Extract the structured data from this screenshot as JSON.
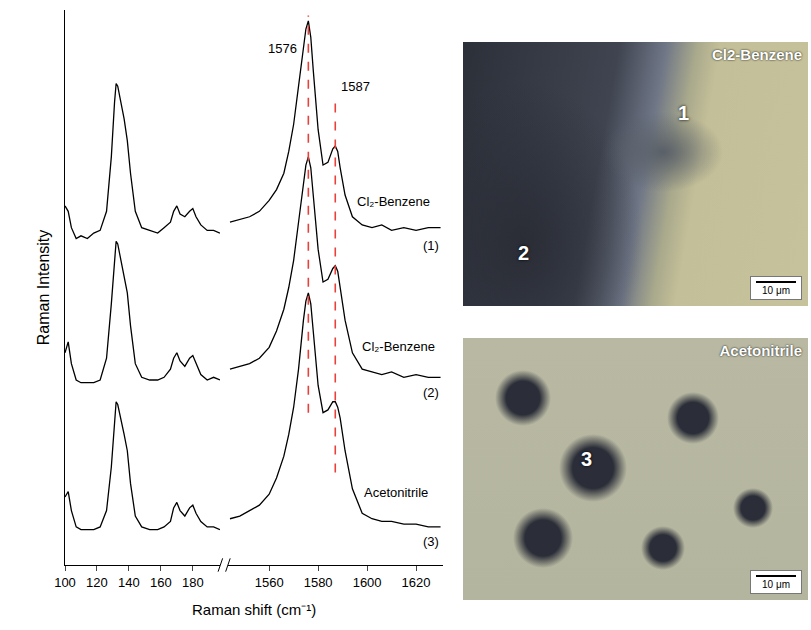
{
  "chart_data": {
    "type": "line",
    "x_label": "Raman shift (cm⁻¹)",
    "y_label": "Raman Intensity",
    "tick_labels": "x",
    "ylim": [
      0,
      102
    ],
    "panels": [
      {
        "xlim": [
          100,
          197
        ],
        "xticks": [
          100,
          120,
          140,
          160,
          180
        ]
      },
      {
        "xlim": [
          1543,
          1631
        ],
        "xticks": [
          1560,
          1580,
          1600,
          1620
        ]
      }
    ],
    "series": [
      {
        "color": "#000000",
        "x": [
          100,
          102,
          104,
          107,
          110,
          114,
          118,
          122,
          126,
          129,
          131,
          132,
          133,
          135,
          137,
          139,
          141,
          144,
          148,
          153,
          158,
          162,
          166,
          168,
          170,
          172,
          175,
          178,
          180,
          182,
          185,
          189,
          193,
          197,
          1544,
          1548,
          1552,
          1556,
          1560,
          1563,
          1566,
          1568,
          1570,
          1572,
          1574,
          1575,
          1576,
          1577,
          1578,
          1580,
          1582,
          1584,
          1586,
          1587,
          1588,
          1589,
          1591,
          1594,
          1598,
          1602,
          1606,
          1610,
          1615,
          1620,
          1625,
          1630
        ],
        "values": [
          66,
          65,
          62,
          60,
          60.5,
          60,
          61,
          61.5,
          65,
          75,
          85,
          88.5,
          88,
          85,
          82,
          78,
          72,
          65,
          62,
          61.5,
          61,
          62,
          63,
          65,
          66,
          64.5,
          64,
          65,
          65.5,
          64,
          62.5,
          61.5,
          61.5,
          61,
          63,
          63.5,
          64,
          65,
          67,
          69,
          72,
          76,
          81,
          88,
          95,
          98.5,
          100,
          97,
          91,
          80,
          73.5,
          74,
          76.5,
          77,
          76,
          73,
          68,
          64,
          62.5,
          62,
          62.5,
          61.5,
          62,
          61.5,
          62,
          62
        ]
      },
      {
        "color": "#000000",
        "x": [
          100,
          102,
          104,
          107,
          110,
          114,
          118,
          122,
          126,
          129,
          131,
          132,
          133,
          135,
          137,
          139,
          141,
          144,
          148,
          153,
          158,
          162,
          166,
          168,
          170,
          172,
          175,
          178,
          180,
          182,
          185,
          189,
          193,
          197,
          1544,
          1548,
          1552,
          1556,
          1560,
          1563,
          1566,
          1568,
          1570,
          1572,
          1574,
          1575,
          1576,
          1577,
          1578,
          1580,
          1582,
          1584,
          1586,
          1587,
          1588,
          1589,
          1591,
          1594,
          1598,
          1602,
          1606,
          1610,
          1615,
          1620,
          1625,
          1630
        ],
        "values": [
          39,
          41,
          37,
          34,
          33.5,
          33.5,
          33.5,
          34,
          38,
          48,
          57,
          59.5,
          59,
          56,
          53,
          50,
          44,
          37,
          34.5,
          34,
          34,
          34.5,
          36,
          38,
          39,
          37.5,
          36.5,
          38,
          38.5,
          37,
          35,
          34,
          34.5,
          34,
          36,
          36.5,
          37,
          38,
          40,
          43,
          47,
          51,
          56,
          63,
          70,
          73.5,
          75,
          73,
          68,
          58,
          52,
          52.5,
          54.5,
          55,
          54,
          51,
          45,
          39,
          36,
          35.5,
          35,
          35.5,
          34.5,
          35,
          34.5,
          34.5
        ]
      },
      {
        "color": "#000000",
        "x": [
          100,
          102,
          104,
          107,
          110,
          114,
          118,
          122,
          126,
          129,
          131,
          132,
          133,
          135,
          137,
          139,
          141,
          144,
          148,
          153,
          158,
          162,
          166,
          168,
          170,
          172,
          175,
          178,
          180,
          182,
          185,
          189,
          193,
          197,
          1544,
          1548,
          1552,
          1556,
          1560,
          1563,
          1566,
          1568,
          1570,
          1572,
          1574,
          1575,
          1576,
          1577,
          1578,
          1580,
          1582,
          1584,
          1586,
          1587,
          1588,
          1589,
          1591,
          1594,
          1598,
          1602,
          1606,
          1610,
          1615,
          1620,
          1625,
          1630
        ],
        "values": [
          12.5,
          13.5,
          10,
          7,
          6.5,
          6.5,
          6.5,
          7,
          10,
          18,
          27,
          30,
          29.5,
          27,
          24,
          21,
          15,
          9,
          7,
          6.5,
          6.5,
          7,
          8,
          10.5,
          11.5,
          10,
          9,
          10.5,
          11,
          9.5,
          8,
          7,
          7,
          6.5,
          8.5,
          9,
          10,
          11,
          13,
          16,
          20,
          24,
          29,
          36,
          45,
          48.5,
          50,
          48,
          43,
          33,
          28,
          28.5,
          30,
          30,
          29,
          27,
          21,
          14,
          9.5,
          8.5,
          8,
          8,
          7.5,
          7.5,
          7,
          7
        ]
      }
    ],
    "reference_lines": [
      {
        "x": 1576,
        "y": [
          28,
          101
        ],
        "label": "1576",
        "label_y": 95,
        "color": "#e8403a",
        "line_style": "dash"
      },
      {
        "x": 1587,
        "y": [
          17,
          86
        ],
        "label": "1587",
        "label_y": 88,
        "color": "#e8403a",
        "line_style": "dash"
      }
    ],
    "annotations": [
      {
        "text": "Cl₂-Benzene",
        "x": 1595,
        "y": 65
      },
      {
        "text": "(1)",
        "x": 1630,
        "y": 60.5
      },
      {
        "text": "Cl₂-Benzene",
        "x": 1597,
        "y": 38.5
      },
      {
        "text": "(2)",
        "x": 1630,
        "y": 33.5
      },
      {
        "text": "Acetonitrile",
        "x": 1598,
        "y": 11.5
      },
      {
        "text": "(3)",
        "x": 1630,
        "y": 6
      }
    ]
  },
  "micrographs": [
    {
      "title": "Cl2-Benzene",
      "points": [
        "1",
        "2"
      ],
      "scale_bar": "10 μm"
    },
    {
      "title": "Acetonitrile",
      "points": [
        "3"
      ],
      "scale_bar": "10 μm"
    }
  ]
}
